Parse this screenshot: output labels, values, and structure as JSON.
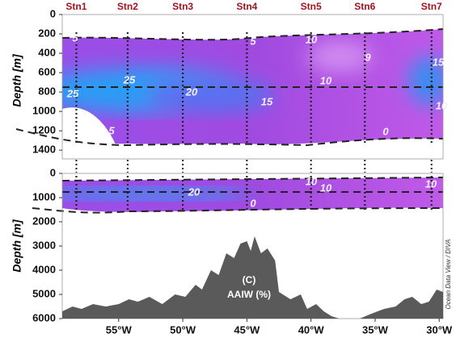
{
  "chart_data": [
    {
      "type": "section",
      "ylabel": "Depth [m]",
      "ylim": [
        0,
        1490
      ],
      "yticks": [
        0,
        200,
        400,
        600,
        800,
        1000,
        1200,
        1400
      ],
      "xlim": [
        -59.4,
        -29.7
      ],
      "stations": {
        "labels": [
          "Stn1",
          "Stn2",
          "Stn3",
          "Stn4",
          "Stn5",
          "Stn6",
          "Stn7"
        ],
        "x": [
          -58.3,
          -54.3,
          -50,
          -45,
          -40,
          -35.8,
          -30.6
        ]
      },
      "contour_labels": [
        5,
        5,
        10,
        9,
        15,
        25,
        25,
        20,
        15,
        10,
        10,
        5,
        0
      ]
    },
    {
      "type": "section",
      "ylabel": "Depth [m]",
      "ylim": [
        0,
        6000
      ],
      "yticks": [
        0,
        1000,
        2000,
        3000,
        4000,
        5000,
        6000
      ],
      "xlim": [
        -59.4,
        -29.7
      ],
      "xticks": [
        {
          "value": -55,
          "label": "55°W"
        },
        {
          "value": -50,
          "label": "50°W"
        },
        {
          "value": -45,
          "label": "45°W"
        },
        {
          "value": -40,
          "label": "40°W"
        },
        {
          "value": -35,
          "label": "35°W"
        },
        {
          "value": -30,
          "label": "30°W"
        }
      ],
      "contour_labels": [
        10,
        10,
        20,
        0,
        10
      ],
      "annotation": "(C)",
      "subtitle": "AAIW (%)",
      "credit": "Ocean Data View / DIVA",
      "bathymetry": {
        "x": [
          -59.4,
          -58.6,
          -57.9,
          -57,
          -56,
          -55,
          -54.2,
          -53.5,
          -52.6,
          -51.6,
          -50.6,
          -49.8,
          -49,
          -48.5,
          -47.8,
          -47.2,
          -46.6,
          -46,
          -45.5,
          -45,
          -44.7,
          -44.4,
          -43.9,
          -43.4,
          -42.8,
          -42.5,
          -41.6,
          -40.8,
          -40.3,
          -39.6,
          -39,
          -38.4,
          -37.8,
          -36.2,
          -35.3,
          -34.3,
          -33.4,
          -32.7,
          -32.1,
          -31.4,
          -30.8,
          -30.2,
          -29.7
        ],
        "depth": [
          5700,
          5500,
          5600,
          5400,
          5500,
          5400,
          5200,
          5300,
          5100,
          5400,
          5000,
          5100,
          4600,
          4800,
          4000,
          4200,
          3300,
          3500,
          2900,
          2800,
          3200,
          2600,
          3300,
          3100,
          3600,
          4900,
          5200,
          5000,
          5600,
          5400,
          5700,
          5900,
          6000,
          6000,
          5800,
          5600,
          5500,
          5200,
          5100,
          5400,
          5300,
          4800,
          4900
        ]
      }
    }
  ]
}
